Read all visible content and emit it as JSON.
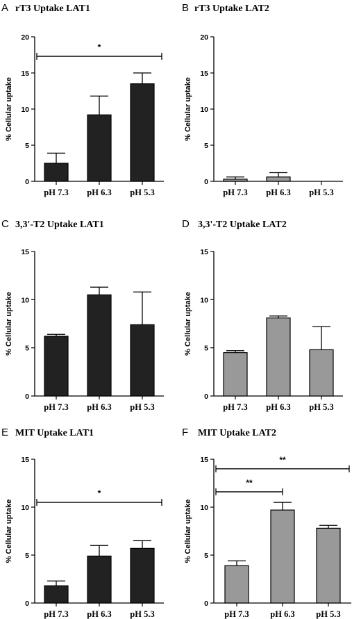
{
  "chart_data": [
    {
      "panel": "A",
      "title": "rT3 Uptake LAT1",
      "type": "bar",
      "ylabel": "% Cellular uptake",
      "ylim": [
        0,
        20
      ],
      "yticks": [
        0,
        5,
        10,
        15,
        20
      ],
      "categories": [
        "pH 7.3",
        "pH 6.3",
        "pH 5.3"
      ],
      "values": [
        2.5,
        9.2,
        13.5
      ],
      "errors": [
        1.4,
        2.6,
        1.5
      ],
      "bar_color": "#222222",
      "significance": [
        {
          "from": 0,
          "to": 2,
          "y": 17.3,
          "label": "*"
        }
      ]
    },
    {
      "panel": "B",
      "title": "rT3 Uptake LAT2",
      "type": "bar",
      "ylabel": "% Cellular uptake",
      "ylim": [
        0,
        20
      ],
      "yticks": [
        0,
        5,
        10,
        15,
        20
      ],
      "categories": [
        "pH 7.3",
        "pH 6.3",
        "pH 5.3"
      ],
      "values": [
        0.3,
        0.6,
        0
      ],
      "errors": [
        0.3,
        0.6,
        0
      ],
      "bar_color": "#999999",
      "significance": []
    },
    {
      "panel": "C",
      "title": "3,3'-T2 Uptake LAT1",
      "type": "bar",
      "ylabel": "% Cellular uptake",
      "ylim": [
        0,
        15
      ],
      "yticks": [
        0,
        5,
        10,
        15
      ],
      "categories": [
        "pH 7.3",
        "pH 6.3",
        "pH 5.3"
      ],
      "values": [
        6.2,
        10.5,
        7.4
      ],
      "errors": [
        0.2,
        0.8,
        3.4
      ],
      "bar_color": "#222222",
      "significance": []
    },
    {
      "panel": "D",
      "title": "3,3'-T2 Uptake LAT2",
      "type": "bar",
      "ylabel": "% Cellular uptake",
      "ylim": [
        0,
        15
      ],
      "yticks": [
        0,
        5,
        10,
        15
      ],
      "categories": [
        "pH 7.3",
        "pH 6.3",
        "pH 5.3"
      ],
      "values": [
        4.5,
        8.1,
        4.8
      ],
      "errors": [
        0.2,
        0.2,
        2.4
      ],
      "bar_color": "#999999",
      "significance": []
    },
    {
      "panel": "E",
      "title": "MIT Uptake LAT1",
      "type": "bar",
      "ylabel": "% Cellular uptake",
      "ylim": [
        0,
        15
      ],
      "yticks": [
        0,
        5,
        10,
        15
      ],
      "categories": [
        "pH 7.3",
        "pH 6.3",
        "pH 5.3"
      ],
      "values": [
        1.8,
        4.9,
        5.7
      ],
      "errors": [
        0.5,
        1.1,
        0.8
      ],
      "bar_color": "#222222",
      "significance": [
        {
          "from": 0,
          "to": 2,
          "y": 10.5,
          "label": "*"
        }
      ]
    },
    {
      "panel": "F",
      "title": "MIT Uptake LAT2",
      "type": "bar",
      "ylabel": "% Cellular uptake",
      "ylim": [
        0,
        15
      ],
      "yticks": [
        0,
        5,
        10,
        15
      ],
      "categories": [
        "pH 7.3",
        "pH 6.3",
        "pH 5.3"
      ],
      "values": [
        3.9,
        9.7,
        7.8
      ],
      "errors": [
        0.5,
        0.8,
        0.3
      ],
      "bar_color": "#999999",
      "significance": [
        {
          "from": 0,
          "to": 1,
          "y": 11.6,
          "label": "**"
        },
        {
          "from": 0,
          "to": 2,
          "y": 14.0,
          "label": "**"
        }
      ]
    }
  ]
}
